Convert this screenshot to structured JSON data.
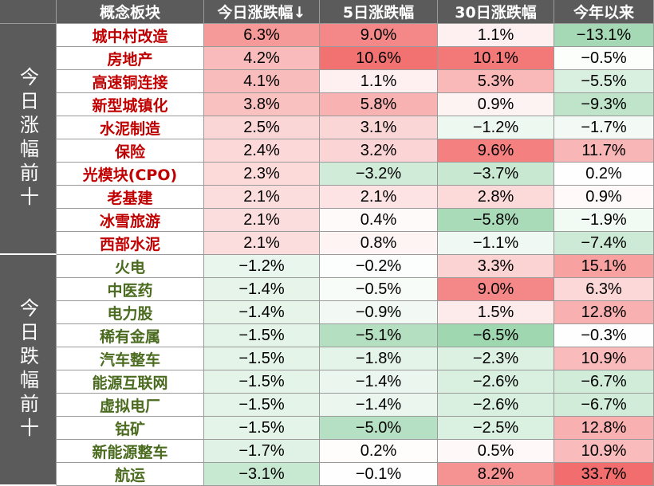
{
  "header": {
    "name": "概念板块",
    "today": "今日涨跌幅↓",
    "five_day": "5日涨跌幅",
    "thirty_day": "30日涨跌幅",
    "ytd": "今年以来"
  },
  "groups": {
    "gainers_label": "今日涨幅前十",
    "losers_label": "今日跌幅前十"
  },
  "colors": {
    "header_bg": "#5b5b5b",
    "gainer_name": "#c00000",
    "loser_name": "#4b6b1f",
    "positive_scale": "#f26d6d",
    "negative_scale": "#5dbb7a"
  },
  "rows": [
    {
      "group": "gainers",
      "name": "城中村改造",
      "today": "6.3%",
      "five_day": "9.0%",
      "thirty_day": "1.1%",
      "ytd": "−13.1%"
    },
    {
      "group": "gainers",
      "name": "房地产",
      "today": "4.2%",
      "five_day": "10.6%",
      "thirty_day": "10.1%",
      "ytd": "−0.5%"
    },
    {
      "group": "gainers",
      "name": "高速铜连接",
      "today": "4.1%",
      "five_day": "1.1%",
      "thirty_day": "5.3%",
      "ytd": "−5.5%"
    },
    {
      "group": "gainers",
      "name": "新型城镇化",
      "today": "3.8%",
      "five_day": "5.8%",
      "thirty_day": "0.9%",
      "ytd": "−9.3%"
    },
    {
      "group": "gainers",
      "name": "水泥制造",
      "today": "2.5%",
      "five_day": "3.1%",
      "thirty_day": "−1.2%",
      "ytd": "−1.7%"
    },
    {
      "group": "gainers",
      "name": "保险",
      "today": "2.4%",
      "five_day": "3.2%",
      "thirty_day": "9.6%",
      "ytd": "11.7%"
    },
    {
      "group": "gainers",
      "name": "光模块(CPO)",
      "today": "2.3%",
      "five_day": "−3.2%",
      "thirty_day": "−3.7%",
      "ytd": "0.2%"
    },
    {
      "group": "gainers",
      "name": "老基建",
      "today": "2.1%",
      "five_day": "2.1%",
      "thirty_day": "2.8%",
      "ytd": "0.9%"
    },
    {
      "group": "gainers",
      "name": "冰雪旅游",
      "today": "2.1%",
      "five_day": "0.4%",
      "thirty_day": "−5.8%",
      "ytd": "−1.9%"
    },
    {
      "group": "gainers",
      "name": "西部水泥",
      "today": "2.1%",
      "five_day": "0.8%",
      "thirty_day": "−1.1%",
      "ytd": "−7.4%"
    },
    {
      "group": "losers",
      "name": "火电",
      "today": "−1.2%",
      "five_day": "−0.2%",
      "thirty_day": "3.3%",
      "ytd": "15.1%"
    },
    {
      "group": "losers",
      "name": "中医药",
      "today": "−1.4%",
      "five_day": "−0.5%",
      "thirty_day": "9.0%",
      "ytd": "6.3%"
    },
    {
      "group": "losers",
      "name": "电力股",
      "today": "−1.4%",
      "five_day": "−0.9%",
      "thirty_day": "1.5%",
      "ytd": "12.8%"
    },
    {
      "group": "losers",
      "name": "稀有金属",
      "today": "−1.5%",
      "five_day": "−5.1%",
      "thirty_day": "−6.5%",
      "ytd": "−0.3%"
    },
    {
      "group": "losers",
      "name": "汽车整车",
      "today": "−1.5%",
      "five_day": "−1.8%",
      "thirty_day": "−2.3%",
      "ytd": "10.9%"
    },
    {
      "group": "losers",
      "name": "能源互联网",
      "today": "−1.5%",
      "five_day": "−1.4%",
      "thirty_day": "−2.6%",
      "ytd": "−6.7%"
    },
    {
      "group": "losers",
      "name": "虚拟电厂",
      "today": "−1.5%",
      "five_day": "−1.4%",
      "thirty_day": "−2.6%",
      "ytd": "−6.7%"
    },
    {
      "group": "losers",
      "name": "钴矿",
      "today": "−1.5%",
      "five_day": "−5.0%",
      "thirty_day": "−2.5%",
      "ytd": "12.8%"
    },
    {
      "group": "losers",
      "name": "新能源整车",
      "today": "−1.7%",
      "five_day": "0.2%",
      "thirty_day": "0.5%",
      "ytd": "10.9%"
    },
    {
      "group": "losers",
      "name": "航运",
      "today": "−3.1%",
      "five_day": "−0.1%",
      "thirty_day": "8.2%",
      "ytd": "33.7%"
    }
  ]
}
